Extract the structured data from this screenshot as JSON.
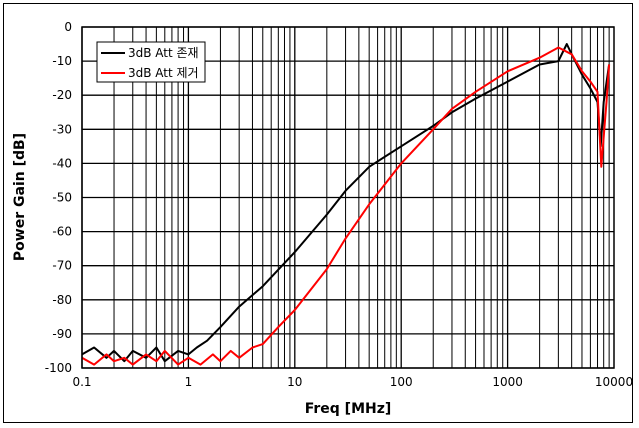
{
  "chart_data": {
    "type": "line",
    "xlabel": "Freq [MHz]",
    "ylabel": "Power Gain [dB]",
    "xscale": "log",
    "xlim": [
      0.1,
      10000
    ],
    "ylim": [
      -100,
      0
    ],
    "xticks": [
      "0.1",
      "1",
      "10",
      "100",
      "1000",
      "10000"
    ],
    "yticks": [
      "0",
      "-10",
      "-20",
      "-30",
      "-40",
      "-50",
      "-60",
      "-70",
      "-80",
      "-90",
      "-100"
    ],
    "grid": true,
    "legend_position": "top-left",
    "series": [
      {
        "name": "3dB Att 존재",
        "color": "#000000",
        "x": [
          0.1,
          0.13,
          0.17,
          0.2,
          0.25,
          0.3,
          0.4,
          0.5,
          0.6,
          0.8,
          1,
          1.2,
          1.5,
          2,
          3,
          5,
          10,
          20,
          30,
          50,
          100,
          200,
          300,
          500,
          1000,
          2000,
          3000,
          3600,
          4000,
          5000,
          6000,
          7000,
          7500,
          8000,
          9000
        ],
        "y": [
          -96,
          -94,
          -97,
          -95,
          -98,
          -95,
          -97,
          -94,
          -98,
          -95,
          -96,
          -94,
          -92,
          -88,
          -82,
          -76,
          -66,
          -55,
          -48,
          -41,
          -35,
          -29,
          -25,
          -21,
          -16,
          -11,
          -10,
          -5,
          -8,
          -14,
          -18,
          -22,
          -35,
          -22,
          -11
        ]
      },
      {
        "name": "3dB Att 제거",
        "color": "#ff0000",
        "x": [
          0.1,
          0.13,
          0.17,
          0.2,
          0.25,
          0.3,
          0.4,
          0.5,
          0.6,
          0.8,
          1,
          1.3,
          1.7,
          2,
          2.5,
          3,
          4,
          5,
          7,
          10,
          20,
          30,
          50,
          100,
          200,
          300,
          500,
          1000,
          2000,
          3000,
          4000,
          5000,
          6000,
          7000,
          7600,
          8500,
          9000
        ],
        "y": [
          -97,
          -99,
          -96,
          -98,
          -97,
          -99,
          -96,
          -98,
          -95,
          -99,
          -97,
          -99,
          -96,
          -98,
          -95,
          -97,
          -94,
          -93,
          -88,
          -83,
          -71,
          -62,
          -52,
          -40,
          -30,
          -24,
          -19,
          -13,
          -9,
          -6,
          -8,
          -13,
          -16,
          -19,
          -41,
          -22,
          -11
        ]
      }
    ]
  }
}
